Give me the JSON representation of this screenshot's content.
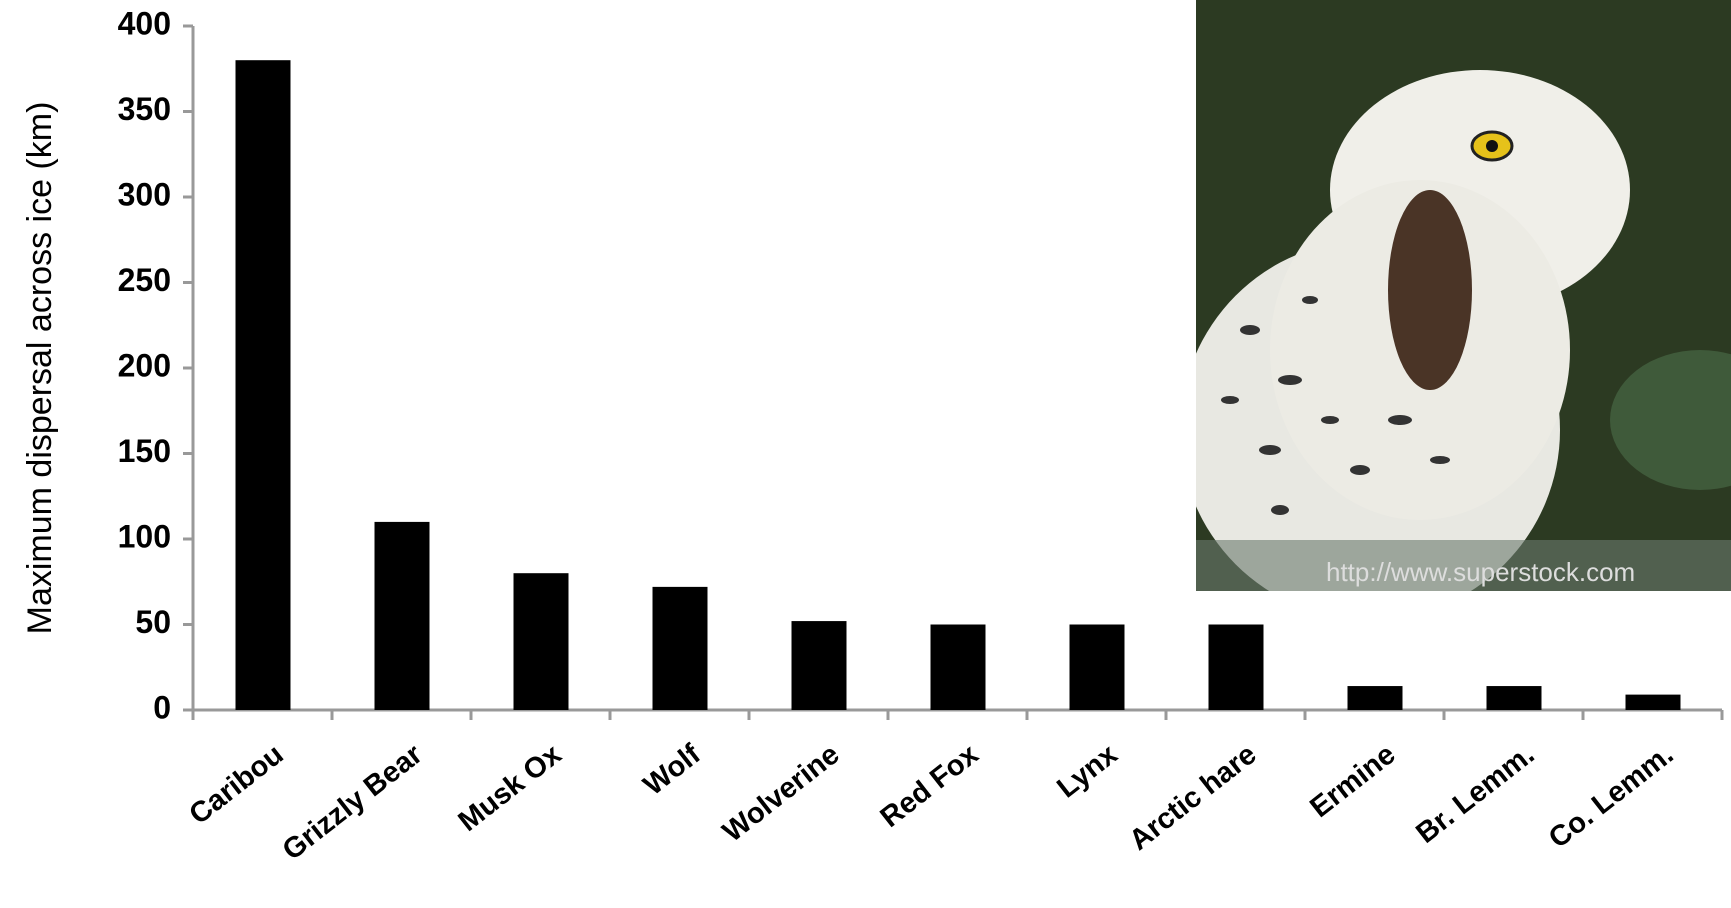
{
  "chart_data": {
    "type": "bar",
    "y_label": "Maximum dispersal  across ice (km)",
    "categories": [
      "Caribou",
      "Grizzly Bear",
      "Musk Ox",
      "Wolf",
      "Wolverine",
      "Red Fox",
      "Lynx",
      "Arctic hare",
      "Ermine",
      "Br. Lemm.",
      "Co. Lemm."
    ],
    "values": [
      380,
      110,
      80,
      72,
      52,
      50,
      50,
      50,
      14,
      14,
      9
    ],
    "color": "#000000",
    "ylim": [
      0,
      400
    ],
    "yticks": [
      0,
      50,
      100,
      150,
      200,
      250,
      300,
      350,
      400
    ],
    "grid": false,
    "image_credit": "http://www.superstock.com"
  }
}
